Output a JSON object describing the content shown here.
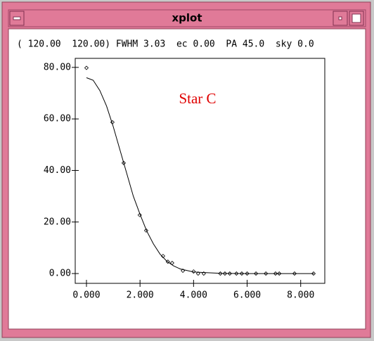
{
  "window": {
    "title": "xplot",
    "info": "( 120.00  120.00) FWHM 3.03  ec 0.00  PA 45.0  sky 0.0"
  },
  "chart_data": {
    "type": "scatter",
    "annotation": "Star C",
    "xlim": [
      -0.42,
      8.9
    ],
    "ylim": [
      -3.8,
      83.5
    ],
    "xticks": [
      {
        "value": 0,
        "label": "0.000"
      },
      {
        "value": 2,
        "label": "2.000"
      },
      {
        "value": 4,
        "label": "4.000"
      },
      {
        "value": 6,
        "label": "6.000"
      },
      {
        "value": 8,
        "label": "8.000"
      }
    ],
    "yticks": [
      {
        "value": 0,
        "label": "0.00"
      },
      {
        "value": 20,
        "label": "20.00"
      },
      {
        "value": 40,
        "label": "40.00"
      },
      {
        "value": 60,
        "label": "60.00"
      },
      {
        "value": 80,
        "label": "80.00"
      }
    ],
    "series": [
      {
        "style": "points",
        "color": "#000000",
        "x": [
          0,
          0.97,
          1.39,
          1.99,
          2.23,
          2.86,
          3.04,
          3.2,
          3.6,
          4.0,
          4.17,
          4.38,
          5.0,
          5.17,
          5.35,
          5.6,
          5.8,
          6.0,
          6.33,
          6.7,
          7.06,
          7.2,
          7.77,
          8.48
        ],
        "values": [
          79.8,
          58.7,
          42.9,
          22.7,
          16.7,
          6.8,
          4.6,
          4.1,
          1.1,
          0.8,
          0,
          0,
          0,
          0,
          0,
          0,
          0,
          0,
          0,
          0,
          0,
          0,
          0,
          0
        ]
      },
      {
        "style": "line",
        "color": "#000000",
        "x": [
          0,
          0.25,
          0.5,
          0.75,
          1,
          1.25,
          1.5,
          1.75,
          2,
          2.25,
          2.5,
          2.75,
          3,
          3.25,
          3.5,
          4,
          5,
          6,
          7,
          8,
          8.5
        ],
        "values": [
          76,
          75,
          71,
          65,
          57,
          48,
          39,
          30,
          23,
          16.5,
          11.5,
          7.5,
          4.8,
          3,
          1.8,
          0.6,
          0.1,
          0,
          0,
          0,
          0
        ]
      }
    ]
  }
}
